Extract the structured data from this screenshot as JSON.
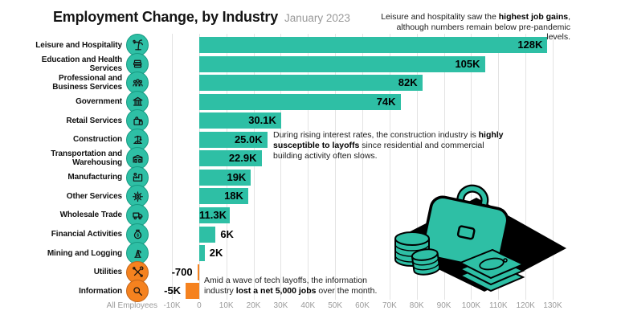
{
  "header": {
    "title": "Employment Change, by Industry",
    "subtitle": "January 2023"
  },
  "annotations": {
    "leisure": {
      "seg1": "Leisure and hospitality saw the ",
      "bold": "highest job gains",
      "seg2": ", although numbers remain below pre-pandemic levels."
    },
    "construction": {
      "seg1": "During rising interest rates, the construction industry is ",
      "bold": "highly susceptible to layoffs",
      "seg2": " since residential and commercial building activity often slows."
    },
    "information": {
      "seg1": "Amid a wave of tech layoffs, the information industry ",
      "bold": "lost a net 5,000 jobs",
      "seg2": " over the month."
    }
  },
  "axis": {
    "title": "All Employees",
    "ticks": [
      "-10K",
      "0",
      "10K",
      "20K",
      "30K",
      "40K",
      "50K",
      "60K",
      "70K",
      "80K",
      "90K",
      "100K",
      "110K",
      "120K",
      "130K"
    ]
  },
  "colors": {
    "positive": "#2EBFA5",
    "negative": "#F5821F",
    "gridline": "#E3E3E3",
    "axis_text": "#9B9B9B",
    "subtitle_text": "#999999"
  },
  "illustration": {
    "name": "briefcase-coins-money-illustration"
  },
  "chart_data": {
    "type": "bar",
    "orientation": "horizontal",
    "title": "Employment Change, by Industry",
    "subtitle": "January 2023",
    "xlabel": "All Employees",
    "xlim": [
      -10000,
      130000
    ],
    "grid": true,
    "categories": [
      "Leisure and Hospitality",
      "Education and Health Services",
      "Professional and Business Services",
      "Government",
      "Retail Services",
      "Construction",
      "Transportation and Warehousing",
      "Manufacturing",
      "Other Services",
      "Wholesale Trade",
      "Financial Activities",
      "Mining and Logging",
      "Utilities",
      "Information"
    ],
    "values": [
      128000,
      105000,
      82000,
      74000,
      30100,
      25000,
      22900,
      19000,
      18000,
      11300,
      6000,
      2000,
      -700,
      -5000
    ],
    "rows": [
      {
        "label": "Leisure and Hospitality",
        "icon": "palm-tree-icon",
        "value_k": 128,
        "value_label": "128K",
        "sign": "pos",
        "label_pos": "in"
      },
      {
        "label": "Education and Health Services",
        "icon": "books-icon",
        "value_k": 105,
        "value_label": "105K",
        "sign": "pos",
        "label_pos": "in"
      },
      {
        "label": "Professional and Business Services",
        "icon": "people-group-icon",
        "value_k": 82,
        "value_label": "82K",
        "sign": "pos",
        "label_pos": "in"
      },
      {
        "label": "Government",
        "icon": "government-building-icon",
        "value_k": 74,
        "value_label": "74K",
        "sign": "pos",
        "label_pos": "in"
      },
      {
        "label": "Retail Services",
        "icon": "shopping-bags-icon",
        "value_k": 30.1,
        "value_label": "30.1K",
        "sign": "pos",
        "label_pos": "in"
      },
      {
        "label": "Construction",
        "icon": "crane-icon",
        "value_k": 25,
        "value_label": "25.0K",
        "sign": "pos",
        "label_pos": "in"
      },
      {
        "label": "Transportation and Warehousing",
        "icon": "warehouse-icon",
        "value_k": 22.9,
        "value_label": "22.9K",
        "sign": "pos",
        "label_pos": "in"
      },
      {
        "label": "Manufacturing",
        "icon": "factory-icon",
        "value_k": 19,
        "value_label": "19K",
        "sign": "pos",
        "label_pos": "in"
      },
      {
        "label": "Other Services",
        "icon": "gear-icon",
        "value_k": 18,
        "value_label": "18K",
        "sign": "pos",
        "label_pos": "in"
      },
      {
        "label": "Wholesale Trade",
        "icon": "delivery-truck-icon",
        "value_k": 11.3,
        "value_label": "11.3K",
        "sign": "pos",
        "label_pos": "in"
      },
      {
        "label": "Financial Activities",
        "icon": "money-bag-icon",
        "value_k": 6,
        "value_label": "6K",
        "sign": "pos",
        "label_pos": "right"
      },
      {
        "label": "Mining and Logging",
        "icon": "oil-derrick-icon",
        "value_k": 2,
        "value_label": "2K",
        "sign": "pos",
        "label_pos": "right"
      },
      {
        "label": "Utilities",
        "icon": "crossed-tools-icon",
        "value_k": -0.7,
        "value_label": "-700",
        "sign": "neg",
        "label_pos": "left"
      },
      {
        "label": "Information",
        "icon": "magnifying-glass-icon",
        "value_k": -5,
        "value_label": "-5K",
        "sign": "neg",
        "label_pos": "left"
      }
    ]
  }
}
